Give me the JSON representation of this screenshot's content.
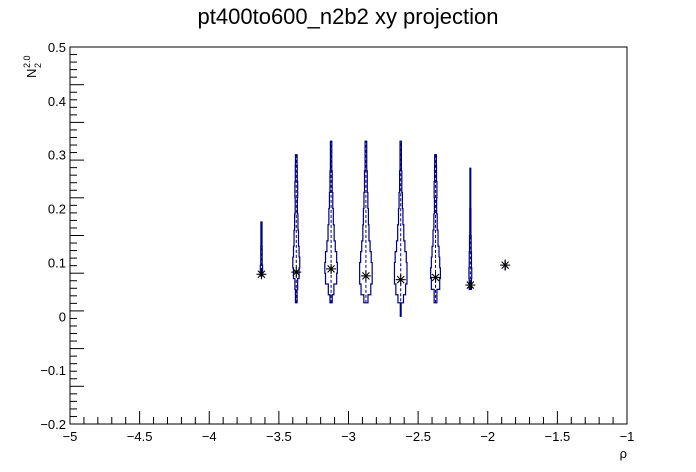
{
  "chart_data": {
    "type": "violin",
    "title": "pt400to600_n2b2 xy projection",
    "xlabel": "ρ",
    "ylabel_main": "N",
    "ylabel_sub": "2",
    "ylabel_sup": "2.0",
    "xlim": [
      -5,
      -1
    ],
    "ylim": [
      -0.2,
      0.5
    ],
    "x_ticks": [
      -5,
      -4.5,
      -4,
      -3.5,
      -3,
      -2.5,
      -2,
      -1.5,
      -1
    ],
    "x_tick_labels": [
      "−5",
      "−4.5",
      "−4",
      "−3.5",
      "−3",
      "−2.5",
      "−2",
      "−1.5",
      "−1"
    ],
    "y_ticks": [
      -0.2,
      -0.1,
      0,
      0.1,
      0.2,
      0.3,
      0.4,
      0.5
    ],
    "y_tick_labels": [
      "−0.2",
      "−0.1",
      "0",
      "0.1",
      "0.2",
      "0.3",
      "0.4",
      "0.5"
    ],
    "line_color": "#000080",
    "marker_color": "#000000",
    "violins": [
      {
        "x": -3.625,
        "mean": 0.078,
        "range": [
          0.075,
          0.175
        ],
        "profile": [
          [
            0.075,
            0.008
          ],
          [
            0.095,
            0.005
          ],
          [
            0.13,
            0.004
          ],
          [
            0.175,
            0.002
          ]
        ]
      },
      {
        "x": -3.375,
        "mean": 0.082,
        "range": [
          0.025,
          0.3
        ],
        "profile": [
          [
            0.025,
            0.006
          ],
          [
            0.05,
            0.01
          ],
          [
            0.07,
            0.02
          ],
          [
            0.09,
            0.025
          ],
          [
            0.11,
            0.02
          ],
          [
            0.13,
            0.016
          ],
          [
            0.16,
            0.012
          ],
          [
            0.19,
            0.008
          ],
          [
            0.22,
            0.01
          ],
          [
            0.25,
            0.007
          ],
          [
            0.28,
            0.006
          ],
          [
            0.3,
            0.004
          ]
        ]
      },
      {
        "x": -3.125,
        "mean": 0.088,
        "range": [
          0.025,
          0.325
        ],
        "profile": [
          [
            0.025,
            0.008
          ],
          [
            0.04,
            0.02
          ],
          [
            0.06,
            0.04
          ],
          [
            0.08,
            0.045
          ],
          [
            0.1,
            0.04
          ],
          [
            0.12,
            0.03
          ],
          [
            0.14,
            0.022
          ],
          [
            0.17,
            0.016
          ],
          [
            0.2,
            0.012
          ],
          [
            0.23,
            0.008
          ],
          [
            0.27,
            0.005
          ],
          [
            0.325,
            0.002
          ]
        ]
      },
      {
        "x": -2.875,
        "mean": 0.075,
        "range": [
          0.025,
          0.325
        ],
        "profile": [
          [
            0.025,
            0.015
          ],
          [
            0.04,
            0.035
          ],
          [
            0.06,
            0.045
          ],
          [
            0.08,
            0.045
          ],
          [
            0.1,
            0.038
          ],
          [
            0.12,
            0.03
          ],
          [
            0.14,
            0.022
          ],
          [
            0.17,
            0.018
          ],
          [
            0.2,
            0.014
          ],
          [
            0.23,
            0.01
          ],
          [
            0.27,
            0.006
          ],
          [
            0.325,
            0.002
          ]
        ]
      },
      {
        "x": -2.625,
        "mean": 0.068,
        "range": [
          0.0,
          0.325
        ],
        "profile": [
          [
            0.0,
            0.003
          ],
          [
            0.025,
            0.02
          ],
          [
            0.04,
            0.035
          ],
          [
            0.06,
            0.045
          ],
          [
            0.08,
            0.045
          ],
          [
            0.1,
            0.04
          ],
          [
            0.12,
            0.03
          ],
          [
            0.14,
            0.022
          ],
          [
            0.17,
            0.016
          ],
          [
            0.2,
            0.012
          ],
          [
            0.23,
            0.008
          ],
          [
            0.27,
            0.005
          ],
          [
            0.325,
            0.002
          ]
        ]
      },
      {
        "x": -2.375,
        "mean": 0.072,
        "range": [
          0.025,
          0.3
        ],
        "profile": [
          [
            0.025,
            0.01
          ],
          [
            0.05,
            0.03
          ],
          [
            0.07,
            0.035
          ],
          [
            0.09,
            0.03
          ],
          [
            0.11,
            0.025
          ],
          [
            0.13,
            0.018
          ],
          [
            0.16,
            0.012
          ],
          [
            0.19,
            0.008
          ],
          [
            0.22,
            0.01
          ],
          [
            0.25,
            0.007
          ],
          [
            0.28,
            0.006
          ],
          [
            0.3,
            0.004
          ]
        ]
      },
      {
        "x": -2.125,
        "mean": 0.058,
        "range": [
          0.05,
          0.275
        ],
        "profile": [
          [
            0.05,
            0.008
          ],
          [
            0.07,
            0.01
          ],
          [
            0.09,
            0.008
          ],
          [
            0.12,
            0.006
          ],
          [
            0.15,
            0.004
          ],
          [
            0.2,
            0.003
          ],
          [
            0.275,
            0.002
          ]
        ]
      },
      {
        "x": -1.875,
        "mean": 0.095,
        "range": [
          0.085,
          0.105
        ],
        "profile": [
          [
            0.085,
            0.0
          ],
          [
            0.105,
            0.0
          ]
        ]
      }
    ]
  }
}
